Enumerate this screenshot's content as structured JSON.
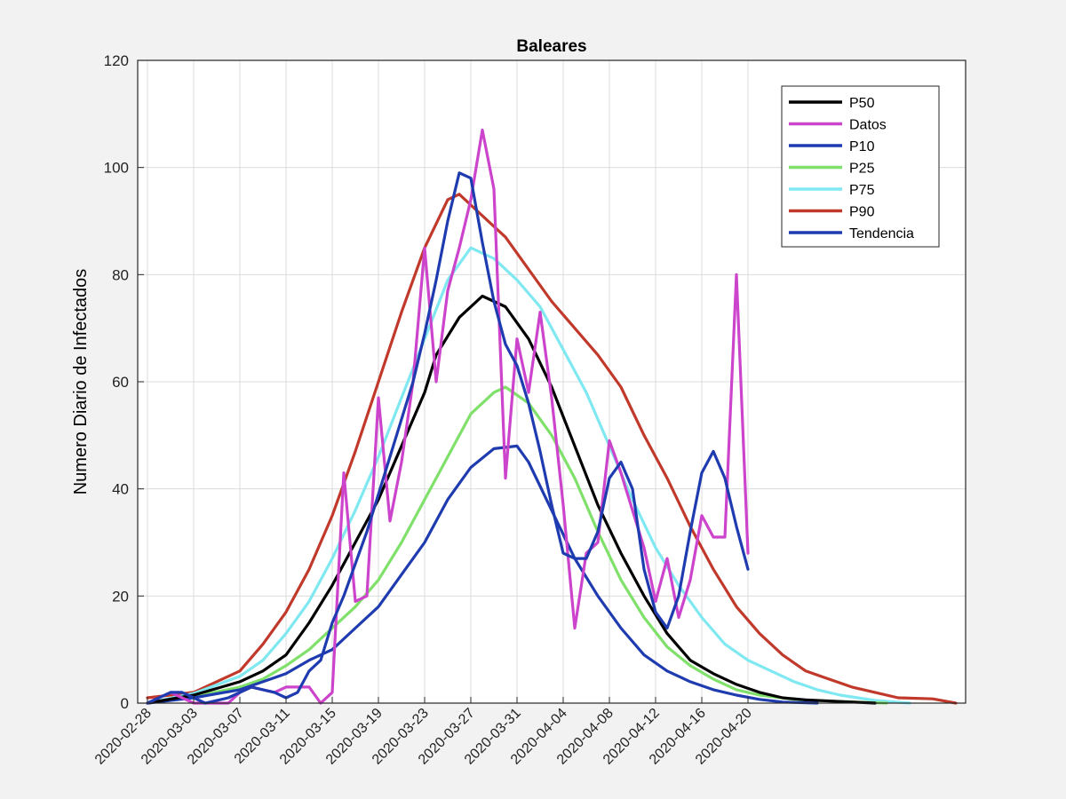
{
  "chart_data": {
    "type": "line",
    "title": "Baleares",
    "xlabel": "",
    "ylabel": "Numero Diario de Infectados",
    "x_start": "2020-02-28",
    "x_end": "2020-05-08",
    "x_ticks": [
      "2020-02-28",
      "2020-03-03",
      "2020-03-07",
      "2020-03-11",
      "2020-03-15",
      "2020-03-19",
      "2020-03-23",
      "2020-03-27",
      "2020-03-31",
      "2020-04-04",
      "2020-04-08",
      "2020-04-12",
      "2020-04-16",
      "2020-04-20"
    ],
    "ylim": [
      0,
      120
    ],
    "y_ticks": [
      0,
      20,
      40,
      60,
      80,
      100,
      120
    ],
    "grid": true,
    "legend_position": "top-right",
    "series": [
      {
        "name": "P50",
        "color": "#000000",
        "points": [
          [
            "2020-02-28",
            0
          ],
          [
            "2020-03-03",
            1.5
          ],
          [
            "2020-03-07",
            4
          ],
          [
            "2020-03-09",
            6
          ],
          [
            "2020-03-11",
            9
          ],
          [
            "2020-03-13",
            15
          ],
          [
            "2020-03-15",
            22
          ],
          [
            "2020-03-17",
            30
          ],
          [
            "2020-03-19",
            38
          ],
          [
            "2020-03-21",
            48
          ],
          [
            "2020-03-23",
            58
          ],
          [
            "2020-03-24",
            65
          ],
          [
            "2020-03-26",
            72
          ],
          [
            "2020-03-28",
            76
          ],
          [
            "2020-03-30",
            74
          ],
          [
            "2020-04-01",
            68
          ],
          [
            "2020-04-03",
            59
          ],
          [
            "2020-04-05",
            48
          ],
          [
            "2020-04-07",
            37
          ],
          [
            "2020-04-09",
            28
          ],
          [
            "2020-04-11",
            20
          ],
          [
            "2020-04-13",
            13
          ],
          [
            "2020-04-15",
            8
          ],
          [
            "2020-04-17",
            5.5
          ],
          [
            "2020-04-19",
            3.5
          ],
          [
            "2020-04-21",
            2
          ],
          [
            "2020-04-23",
            1
          ],
          [
            "2020-04-25",
            0.6
          ],
          [
            "2020-04-28",
            0.3
          ],
          [
            "2020-05-01",
            0
          ]
        ]
      },
      {
        "name": "Datos",
        "color": "#cc44cc",
        "points": [
          [
            "2020-02-28",
            0
          ],
          [
            "2020-03-01",
            2
          ],
          [
            "2020-03-02",
            1
          ],
          [
            "2020-03-03",
            0
          ],
          [
            "2020-03-05",
            0
          ],
          [
            "2020-03-06",
            0
          ],
          [
            "2020-03-07",
            2
          ],
          [
            "2020-03-08",
            3
          ],
          [
            "2020-03-10",
            2
          ],
          [
            "2020-03-11",
            3
          ],
          [
            "2020-03-13",
            3
          ],
          [
            "2020-03-14",
            0
          ],
          [
            "2020-03-15",
            2
          ],
          [
            "2020-03-16",
            43
          ],
          [
            "2020-03-17",
            19
          ],
          [
            "2020-03-18",
            20
          ],
          [
            "2020-03-19",
            57
          ],
          [
            "2020-03-20",
            34
          ],
          [
            "2020-03-21",
            45
          ],
          [
            "2020-03-22",
            60
          ],
          [
            "2020-03-23",
            85
          ],
          [
            "2020-03-24",
            60
          ],
          [
            "2020-03-25",
            77
          ],
          [
            "2020-03-26",
            85
          ],
          [
            "2020-03-27",
            94
          ],
          [
            "2020-03-28",
            107
          ],
          [
            "2020-03-29",
            96
          ],
          [
            "2020-03-30",
            42
          ],
          [
            "2020-03-31",
            68
          ],
          [
            "2020-04-01",
            58
          ],
          [
            "2020-04-02",
            73
          ],
          [
            "2020-04-03",
            57
          ],
          [
            "2020-04-04",
            37
          ],
          [
            "2020-04-05",
            14
          ],
          [
            "2020-04-06",
            28
          ],
          [
            "2020-04-07",
            30
          ],
          [
            "2020-04-08",
            49
          ],
          [
            "2020-04-09",
            43
          ],
          [
            "2020-04-10",
            36
          ],
          [
            "2020-04-11",
            29
          ],
          [
            "2020-04-12",
            19
          ],
          [
            "2020-04-13",
            27
          ],
          [
            "2020-04-14",
            16
          ],
          [
            "2020-04-15",
            23
          ],
          [
            "2020-04-16",
            35
          ],
          [
            "2020-04-17",
            31
          ],
          [
            "2020-04-18",
            31
          ],
          [
            "2020-04-19",
            80
          ],
          [
            "2020-04-20",
            28
          ]
        ]
      },
      {
        "name": "P10",
        "color": "#1f3bb0",
        "points": [
          [
            "2020-02-28",
            0
          ],
          [
            "2020-03-03",
            1
          ],
          [
            "2020-03-07",
            2.5
          ],
          [
            "2020-03-09",
            4
          ],
          [
            "2020-03-11",
            5.5
          ],
          [
            "2020-03-13",
            8
          ],
          [
            "2020-03-15",
            10
          ],
          [
            "2020-03-17",
            14
          ],
          [
            "2020-03-19",
            18
          ],
          [
            "2020-03-21",
            24
          ],
          [
            "2020-03-23",
            30
          ],
          [
            "2020-03-25",
            38
          ],
          [
            "2020-03-27",
            44
          ],
          [
            "2020-03-29",
            47.5
          ],
          [
            "2020-03-31",
            48
          ],
          [
            "2020-04-01",
            45
          ],
          [
            "2020-04-03",
            36
          ],
          [
            "2020-04-05",
            27
          ],
          [
            "2020-04-07",
            20
          ],
          [
            "2020-04-09",
            14
          ],
          [
            "2020-04-11",
            9
          ],
          [
            "2020-04-13",
            6
          ],
          [
            "2020-04-15",
            4
          ],
          [
            "2020-04-17",
            2.5
          ],
          [
            "2020-04-19",
            1.5
          ],
          [
            "2020-04-21",
            0.7
          ],
          [
            "2020-04-23",
            0.2
          ],
          [
            "2020-04-26",
            0
          ]
        ]
      },
      {
        "name": "P25",
        "color": "#7fe06a",
        "points": [
          [
            "2020-02-28",
            0
          ],
          [
            "2020-03-03",
            1.2
          ],
          [
            "2020-03-07",
            3
          ],
          [
            "2020-03-09",
            4.5
          ],
          [
            "2020-03-11",
            7
          ],
          [
            "2020-03-13",
            10
          ],
          [
            "2020-03-15",
            14
          ],
          [
            "2020-03-17",
            18
          ],
          [
            "2020-03-19",
            23
          ],
          [
            "2020-03-21",
            30
          ],
          [
            "2020-03-23",
            38
          ],
          [
            "2020-03-25",
            46
          ],
          [
            "2020-03-27",
            54
          ],
          [
            "2020-03-29",
            58
          ],
          [
            "2020-03-30",
            59
          ],
          [
            "2020-04-01",
            56
          ],
          [
            "2020-04-03",
            50
          ],
          [
            "2020-04-05",
            42
          ],
          [
            "2020-04-07",
            32
          ],
          [
            "2020-04-09",
            23
          ],
          [
            "2020-04-11",
            16
          ],
          [
            "2020-04-13",
            10.5
          ],
          [
            "2020-04-15",
            7
          ],
          [
            "2020-04-17",
            4.5
          ],
          [
            "2020-04-19",
            2.5
          ],
          [
            "2020-04-21",
            1.5
          ],
          [
            "2020-04-24",
            0.7
          ],
          [
            "2020-04-28",
            0.3
          ],
          [
            "2020-05-02",
            0
          ]
        ]
      },
      {
        "name": "P75",
        "color": "#7fe8f0",
        "points": [
          [
            "2020-02-28",
            0
          ],
          [
            "2020-03-03",
            1.8
          ],
          [
            "2020-03-07",
            5
          ],
          [
            "2020-03-09",
            8
          ],
          [
            "2020-03-11",
            13
          ],
          [
            "2020-03-13",
            19
          ],
          [
            "2020-03-15",
            27
          ],
          [
            "2020-03-17",
            36
          ],
          [
            "2020-03-19",
            46
          ],
          [
            "2020-03-21",
            57
          ],
          [
            "2020-03-23",
            68
          ],
          [
            "2020-03-25",
            79
          ],
          [
            "2020-03-27",
            85
          ],
          [
            "2020-03-29",
            83
          ],
          [
            "2020-03-31",
            79
          ],
          [
            "2020-04-02",
            74
          ],
          [
            "2020-04-04",
            66
          ],
          [
            "2020-04-06",
            58
          ],
          [
            "2020-04-08",
            48
          ],
          [
            "2020-04-10",
            38
          ],
          [
            "2020-04-12",
            29
          ],
          [
            "2020-04-14",
            22
          ],
          [
            "2020-04-16",
            16
          ],
          [
            "2020-04-18",
            11
          ],
          [
            "2020-04-20",
            8
          ],
          [
            "2020-04-22",
            6
          ],
          [
            "2020-04-24",
            4
          ],
          [
            "2020-04-26",
            2.5
          ],
          [
            "2020-04-28",
            1.5
          ],
          [
            "2020-05-01",
            0.5
          ],
          [
            "2020-05-04",
            0
          ]
        ]
      },
      {
        "name": "P90",
        "color": "#c0392b",
        "points": [
          [
            "2020-02-28",
            1
          ],
          [
            "2020-03-03",
            2
          ],
          [
            "2020-03-07",
            6
          ],
          [
            "2020-03-09",
            11
          ],
          [
            "2020-03-11",
            17
          ],
          [
            "2020-03-13",
            25
          ],
          [
            "2020-03-15",
            35
          ],
          [
            "2020-03-17",
            47
          ],
          [
            "2020-03-19",
            60
          ],
          [
            "2020-03-21",
            73
          ],
          [
            "2020-03-23",
            85
          ],
          [
            "2020-03-25",
            94
          ],
          [
            "2020-03-26",
            95
          ],
          [
            "2020-03-28",
            91
          ],
          [
            "2020-03-30",
            87
          ],
          [
            "2020-04-01",
            81
          ],
          [
            "2020-04-03",
            75
          ],
          [
            "2020-04-05",
            70
          ],
          [
            "2020-04-07",
            65
          ],
          [
            "2020-04-09",
            59
          ],
          [
            "2020-04-11",
            50
          ],
          [
            "2020-04-13",
            42
          ],
          [
            "2020-04-15",
            33
          ],
          [
            "2020-04-17",
            25
          ],
          [
            "2020-04-19",
            18
          ],
          [
            "2020-04-21",
            13
          ],
          [
            "2020-04-23",
            9
          ],
          [
            "2020-04-25",
            6
          ],
          [
            "2020-04-27",
            4.5
          ],
          [
            "2020-04-29",
            3
          ],
          [
            "2020-05-01",
            2
          ],
          [
            "2020-05-03",
            1
          ],
          [
            "2020-05-06",
            0.8
          ],
          [
            "2020-05-08",
            0
          ]
        ]
      },
      {
        "name": "Tendencia",
        "color": "#1f3bb0",
        "points": [
          [
            "2020-02-28",
            0
          ],
          [
            "2020-03-01",
            2
          ],
          [
            "2020-03-02",
            2
          ],
          [
            "2020-03-03",
            1
          ],
          [
            "2020-03-04",
            0
          ],
          [
            "2020-03-06",
            1
          ],
          [
            "2020-03-08",
            3
          ],
          [
            "2020-03-10",
            2
          ],
          [
            "2020-03-11",
            1
          ],
          [
            "2020-03-12",
            2
          ],
          [
            "2020-03-13",
            6
          ],
          [
            "2020-03-14",
            8
          ],
          [
            "2020-03-15",
            15
          ],
          [
            "2020-03-16",
            20
          ],
          [
            "2020-03-17",
            26
          ],
          [
            "2020-03-18",
            32
          ],
          [
            "2020-03-19",
            39
          ],
          [
            "2020-03-20",
            46
          ],
          [
            "2020-03-21",
            53
          ],
          [
            "2020-03-22",
            60
          ],
          [
            "2020-03-23",
            69
          ],
          [
            "2020-03-24",
            79
          ],
          [
            "2020-03-25",
            90
          ],
          [
            "2020-03-26",
            99
          ],
          [
            "2020-03-27",
            98
          ],
          [
            "2020-03-28",
            86
          ],
          [
            "2020-03-29",
            75
          ],
          [
            "2020-03-30",
            67
          ],
          [
            "2020-03-31",
            63
          ],
          [
            "2020-04-01",
            56
          ],
          [
            "2020-04-02",
            47
          ],
          [
            "2020-04-03",
            37
          ],
          [
            "2020-04-04",
            28
          ],
          [
            "2020-04-05",
            27
          ],
          [
            "2020-04-06",
            27
          ],
          [
            "2020-04-07",
            32
          ],
          [
            "2020-04-08",
            42
          ],
          [
            "2020-04-09",
            45
          ],
          [
            "2020-04-10",
            40
          ],
          [
            "2020-04-11",
            25
          ],
          [
            "2020-04-12",
            17
          ],
          [
            "2020-04-13",
            14
          ],
          [
            "2020-04-14",
            20
          ],
          [
            "2020-04-15",
            32
          ],
          [
            "2020-04-16",
            43
          ],
          [
            "2020-04-17",
            47
          ],
          [
            "2020-04-18",
            42
          ],
          [
            "2020-04-19",
            33
          ],
          [
            "2020-04-20",
            25
          ]
        ]
      }
    ]
  }
}
